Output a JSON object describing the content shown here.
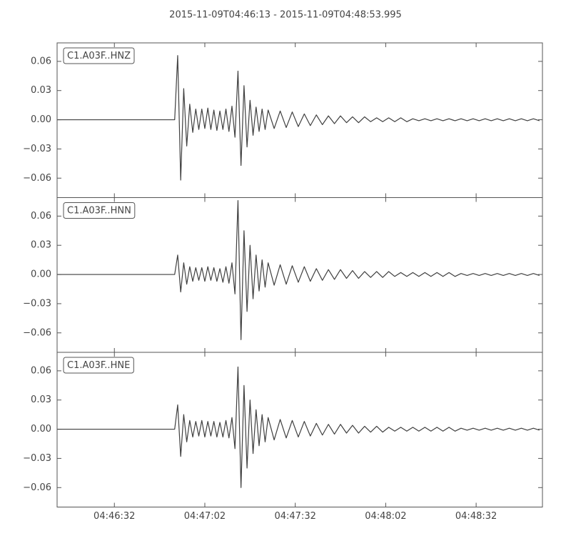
{
  "title": "2015-11-09T04:46:13  -  2015-11-09T04:48:53.995",
  "chart_data": [
    {
      "type": "line",
      "label": "C1.A03F..HNZ",
      "x": [
        0,
        39,
        40,
        41,
        42,
        43,
        44,
        45,
        46,
        47,
        48,
        49,
        50,
        51,
        52,
        53,
        54,
        55,
        56,
        57,
        58,
        59,
        60,
        61,
        62,
        63,
        64,
        65,
        66,
        67,
        68,
        69,
        70,
        72,
        74,
        76,
        78,
        80,
        82,
        84,
        86,
        88,
        90,
        92,
        94,
        96,
        98,
        100,
        102,
        104,
        106,
        108,
        110,
        112,
        114,
        116,
        118,
        120,
        122,
        124,
        126,
        128,
        130,
        132,
        134,
        136,
        138,
        140,
        142,
        144,
        146,
        148,
        150,
        152,
        154,
        156,
        158,
        160
      ],
      "values": [
        0,
        0,
        0.066,
        -0.062,
        0.032,
        -0.027,
        0.016,
        -0.013,
        0.011,
        -0.01,
        0.011,
        -0.009,
        0.012,
        -0.01,
        0.01,
        -0.011,
        0.009,
        -0.01,
        0.011,
        -0.012,
        0.014,
        -0.018,
        0.05,
        -0.047,
        0.035,
        -0.028,
        0.02,
        -0.016,
        0.013,
        -0.012,
        0.011,
        -0.01,
        0.01,
        -0.009,
        0.009,
        -0.008,
        0.008,
        -0.007,
        0.006,
        -0.006,
        0.005,
        -0.005,
        0.004,
        -0.004,
        0.004,
        -0.003,
        0.003,
        -0.003,
        0.003,
        -0.002,
        0.002,
        -0.002,
        0.002,
        -0.002,
        0.002,
        -0.002,
        0.001,
        -0.001,
        0.001,
        -0.001,
        0.001,
        -0.001,
        0.001,
        -0.001,
        0.001,
        -0.001,
        0.001,
        -0.001,
        0.001,
        -0.001,
        0.001,
        -0.001,
        0.001,
        -0.001,
        0.001,
        -0.001,
        0.001,
        -0.001
      ],
      "color": "#3f3f3f",
      "xlim": [
        0,
        160.995
      ],
      "ylim": [
        -0.08,
        0.079
      ],
      "xticks": [
        {
          "value": 19,
          "label": "04:46:32"
        },
        {
          "value": 49,
          "label": "04:47:02"
        },
        {
          "value": 79,
          "label": "04:47:32"
        },
        {
          "value": 109,
          "label": "04:48:02"
        },
        {
          "value": 139,
          "label": "04:48:32"
        }
      ],
      "yticks": [
        0.06,
        0.03,
        {
          "value": 0,
          "label": "0.00"
        },
        {
          "value": -0.03,
          "label": "−0.03"
        },
        {
          "value": -0.06,
          "label": "−0.06"
        }
      ]
    },
    {
      "type": "line",
      "label": "C1.A03F..HNN",
      "x": [
        0,
        39,
        40,
        41,
        42,
        43,
        44,
        45,
        46,
        47,
        48,
        49,
        50,
        51,
        52,
        53,
        54,
        55,
        56,
        57,
        58,
        59,
        60,
        61,
        62,
        63,
        64,
        65,
        66,
        67,
        68,
        69,
        70,
        72,
        74,
        76,
        78,
        80,
        82,
        84,
        86,
        88,
        90,
        92,
        94,
        96,
        98,
        100,
        102,
        104,
        106,
        108,
        110,
        112,
        114,
        116,
        118,
        120,
        122,
        124,
        126,
        128,
        130,
        132,
        134,
        136,
        138,
        140,
        142,
        144,
        146,
        148,
        150,
        152,
        154,
        156,
        158,
        160
      ],
      "values": [
        0,
        0,
        0.02,
        -0.018,
        0.012,
        -0.01,
        0.008,
        -0.007,
        0.007,
        -0.006,
        0.007,
        -0.007,
        0.008,
        -0.006,
        0.007,
        -0.007,
        0.006,
        -0.008,
        0.008,
        -0.009,
        0.012,
        -0.02,
        0.076,
        -0.067,
        0.045,
        -0.038,
        0.03,
        -0.025,
        0.02,
        -0.017,
        0.015,
        -0.013,
        0.012,
        -0.011,
        0.01,
        -0.01,
        0.009,
        -0.008,
        0.008,
        -0.007,
        0.006,
        -0.006,
        0.005,
        -0.005,
        0.005,
        -0.004,
        0.004,
        -0.004,
        0.003,
        -0.003,
        0.003,
        -0.003,
        0.003,
        -0.002,
        0.002,
        -0.002,
        0.002,
        -0.002,
        0.002,
        -0.002,
        0.002,
        -0.002,
        0.002,
        -0.002,
        0.001,
        -0.001,
        0.001,
        -0.001,
        0.001,
        -0.001,
        0.001,
        -0.001,
        0.001,
        -0.001,
        0.001,
        -0.001,
        0.001,
        -0.001
      ],
      "color": "#3f3f3f",
      "xlim": [
        0,
        160.995
      ],
      "ylim": [
        -0.08,
        0.079
      ],
      "xticks": [
        {
          "value": 19,
          "label": "04:46:32"
        },
        {
          "value": 49,
          "label": "04:47:02"
        },
        {
          "value": 79,
          "label": "04:47:32"
        },
        {
          "value": 109,
          "label": "04:48:02"
        },
        {
          "value": 139,
          "label": "04:48:32"
        }
      ],
      "yticks": [
        0.06,
        0.03,
        {
          "value": 0,
          "label": "0.00"
        },
        {
          "value": -0.03,
          "label": "−0.03"
        },
        {
          "value": -0.06,
          "label": "−0.06"
        }
      ]
    },
    {
      "type": "line",
      "label": "C1.A03F..HNE",
      "x": [
        0,
        39,
        40,
        41,
        42,
        43,
        44,
        45,
        46,
        47,
        48,
        49,
        50,
        51,
        52,
        53,
        54,
        55,
        56,
        57,
        58,
        59,
        60,
        61,
        62,
        63,
        64,
        65,
        66,
        67,
        68,
        69,
        70,
        72,
        74,
        76,
        78,
        80,
        82,
        84,
        86,
        88,
        90,
        92,
        94,
        96,
        98,
        100,
        102,
        104,
        106,
        108,
        110,
        112,
        114,
        116,
        118,
        120,
        122,
        124,
        126,
        128,
        130,
        132,
        134,
        136,
        138,
        140,
        142,
        144,
        146,
        148,
        150,
        152,
        154,
        156,
        158,
        160
      ],
      "values": [
        0,
        0,
        0.025,
        -0.028,
        0.015,
        -0.013,
        0.009,
        -0.008,
        0.008,
        -0.007,
        0.009,
        -0.008,
        0.008,
        -0.007,
        0.008,
        -0.008,
        0.007,
        -0.008,
        0.009,
        -0.009,
        0.012,
        -0.02,
        0.064,
        -0.06,
        0.045,
        -0.04,
        0.03,
        -0.025,
        0.02,
        -0.017,
        0.015,
        -0.013,
        0.012,
        -0.011,
        0.01,
        -0.009,
        0.009,
        -0.008,
        0.008,
        -0.007,
        0.006,
        -0.006,
        0.005,
        -0.005,
        0.005,
        -0.004,
        0.004,
        -0.004,
        0.003,
        -0.003,
        0.003,
        -0.003,
        0.002,
        -0.002,
        0.002,
        -0.002,
        0.002,
        -0.002,
        0.002,
        -0.002,
        0.002,
        -0.002,
        0.002,
        -0.002,
        0.001,
        -0.001,
        0.001,
        -0.001,
        0.001,
        -0.001,
        0.001,
        -0.001,
        0.001,
        -0.001,
        0.001,
        -0.001,
        0.001,
        -0.001
      ],
      "color": "#3f3f3f",
      "xlim": [
        0,
        160.995
      ],
      "ylim": [
        -0.08,
        0.079
      ],
      "xticks": [
        {
          "value": 19,
          "label": "04:46:32"
        },
        {
          "value": 49,
          "label": "04:47:02"
        },
        {
          "value": 79,
          "label": "04:47:32"
        },
        {
          "value": 109,
          "label": "04:48:02"
        },
        {
          "value": 139,
          "label": "04:48:32"
        }
      ],
      "yticks": [
        0.06,
        0.03,
        {
          "value": 0,
          "label": "0.00"
        },
        {
          "value": -0.03,
          "label": "−0.03"
        },
        {
          "value": -0.06,
          "label": "−0.06"
        }
      ]
    }
  ]
}
